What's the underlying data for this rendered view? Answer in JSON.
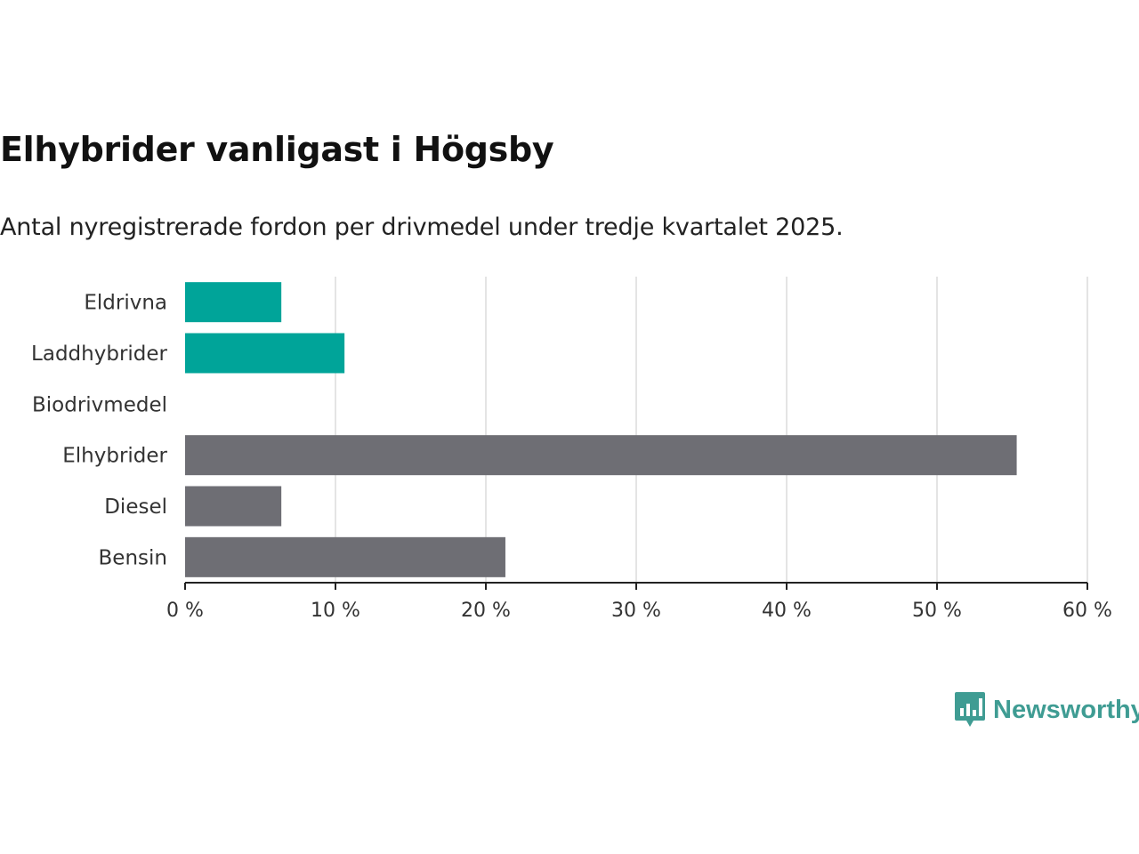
{
  "title": "Elhybrider vanligast i Högsby",
  "subtitle": "Antal nyregistrerade fordon per drivmedel under tredje kvartalet 2025.",
  "brand": {
    "name": "Newsworthy",
    "color": "#3f9c93",
    "icon": "bar-chart-speech-bubble-icon"
  },
  "chart_data": {
    "type": "bar",
    "orientation": "horizontal",
    "categories": [
      "Eldrivna",
      "Laddhybrider",
      "Biodrivmedel",
      "Elhybrider",
      "Diesel",
      "Bensin"
    ],
    "values": [
      6.4,
      10.6,
      0,
      55.3,
      6.4,
      21.3
    ],
    "colors": [
      "#00a499",
      "#00a499",
      "#00a499",
      "#6e6e74",
      "#6e6e74",
      "#6e6e74"
    ],
    "x_ticks": [
      "0 %",
      "10 %",
      "20 %",
      "30 %",
      "40 %",
      "50 %",
      "60 %"
    ],
    "xlim": [
      0,
      60
    ],
    "grid": true,
    "xlabel": "",
    "ylabel": ""
  }
}
